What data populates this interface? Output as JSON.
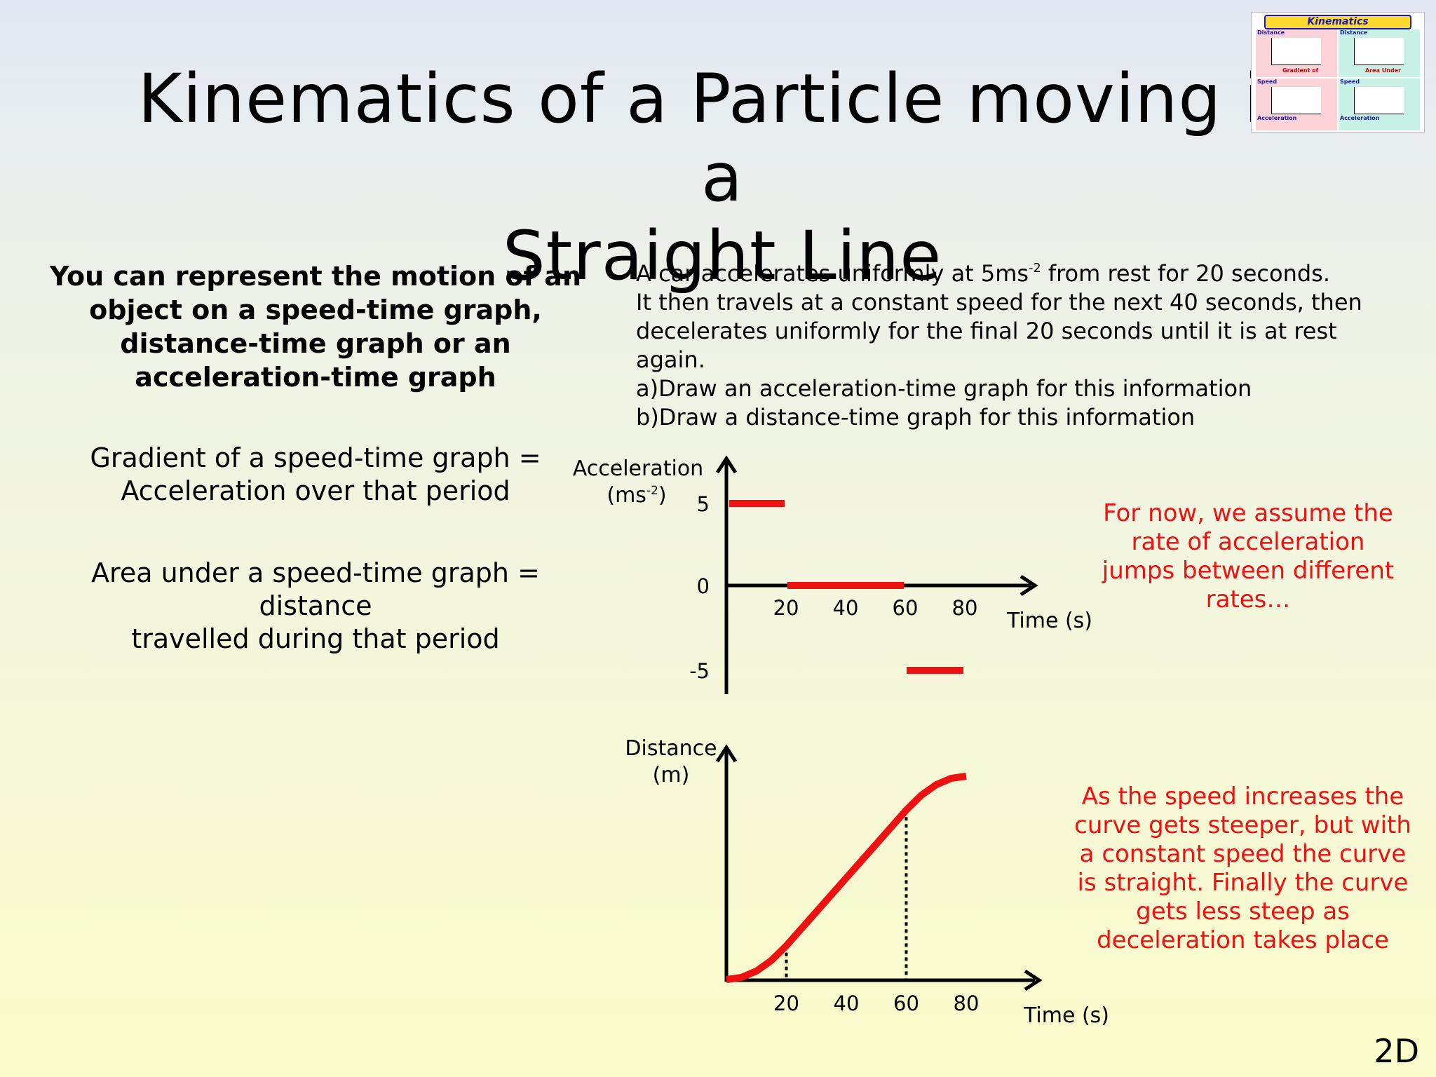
{
  "title": {
    "line1": "Kinematics of a Particle moving in a",
    "line2": "Straight Line"
  },
  "thumbnail": {
    "header": "Kinematics",
    "cells": [
      {
        "label": "Distance",
        "caption": "Gradient of",
        "color": "#fbd3d8"
      },
      {
        "label": "Distance",
        "caption": "Area Under",
        "color": "#c8f2e6"
      },
      {
        "label": "Speed",
        "caption": "Gradient of",
        "color": "#fbd3d8"
      },
      {
        "label": "Speed",
        "caption": "Area Under",
        "color": "#c8f2e6"
      },
      {
        "label": "Acceleration",
        "caption": "",
        "color": "#fbd3d8"
      },
      {
        "label": "Acceleration",
        "caption": "",
        "color": "#c8f2e6"
      }
    ]
  },
  "intro_text": "You can represent the motion of an object on a speed-time graph, distance-time graph or an acceleration-time graph",
  "gradient_text": {
    "line1": "Gradient of a speed-time graph =",
    "line2": "Acceleration over that period"
  },
  "area_text": {
    "line1": "Area under a speed-time graph = distance",
    "line2": "travelled during that period"
  },
  "problem": {
    "line1_pre": "A car accelerates uniformly at 5ms",
    "line1_sup": "-2",
    "line1_post": " from rest for 20 seconds.",
    "line2": "It then travels at a constant speed for the next 40 seconds, then decelerates uniformly for the final 20 seconds until it is at rest again.",
    "part_a": "a)Draw an acceleration-time graph for this information",
    "part_b": "b)Draw a distance-time graph for this information"
  },
  "notes": {
    "acceleration": "For now, we assume the rate of acceleration jumps between different rates…",
    "distance": "As the speed increases the curve gets steeper, but with a constant speed the curve is straight. Finally the curve gets less steep as deceleration takes place"
  },
  "slide_number": "2D",
  "colors": {
    "curve": "#ee1111",
    "axis": "#000000",
    "note": "#ee1111"
  },
  "chart_data": [
    {
      "type": "line",
      "ylabel_line1": "Acceleration",
      "ylabel_line2_pre": "(ms",
      "ylabel_line2_sup": "-2",
      "ylabel_line2_post": ")",
      "xlabel": "Time (s)",
      "x_ticks": [
        20,
        40,
        60,
        80
      ],
      "y_ticks": [
        5,
        0,
        -5
      ],
      "xlim": [
        0,
        104
      ],
      "ylim": [
        -6,
        7
      ],
      "series": [
        {
          "segments": [
            {
              "x": [
                0,
                20
              ],
              "y": [
                5,
                5
              ]
            },
            {
              "x": [
                20,
                60
              ],
              "y": [
                0,
                0
              ]
            },
            {
              "x": [
                60,
                80
              ],
              "y": [
                -5,
                -5
              ]
            }
          ]
        }
      ]
    },
    {
      "type": "line",
      "ylabel_line1": "Distance",
      "ylabel_line2": "(m)",
      "xlabel": "Time (s)",
      "x_ticks": [
        20,
        40,
        60,
        80
      ],
      "y_ticks": [],
      "xlim": [
        0,
        104
      ],
      "ylim": [
        0,
        6000
      ],
      "series": [
        {
          "x": [
            0,
            5,
            10,
            15,
            20,
            30,
            40,
            50,
            60,
            65,
            70,
            75,
            80
          ],
          "y": [
            0,
            62.5,
            250,
            562.5,
            1000,
            2000,
            3000,
            4000,
            5000,
            5437.5,
            5750,
            5937.5,
            6000
          ]
        }
      ],
      "reference_lines_x": [
        20,
        60
      ]
    }
  ]
}
